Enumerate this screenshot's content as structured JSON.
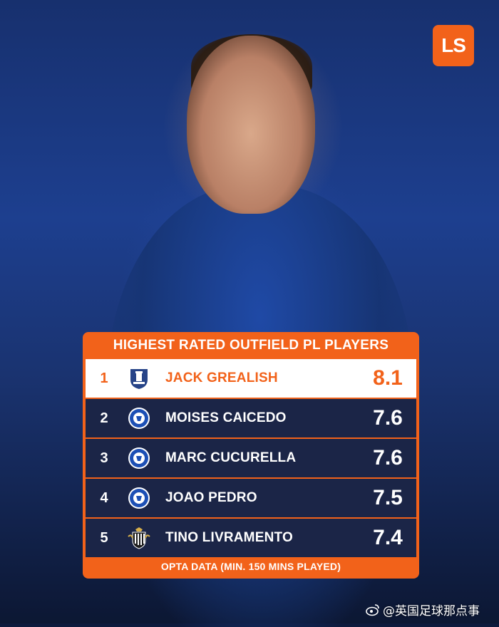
{
  "brand": {
    "logo_text": "LS",
    "accent_color": "#f2621a"
  },
  "table": {
    "title": "HIGHEST RATED OUTFIELD PL PLAYERS",
    "rows": [
      {
        "rank": "1",
        "name": "JACK GREALISH",
        "score": "8.1",
        "club_icon": "everton-crest-icon"
      },
      {
        "rank": "2",
        "name": "MOISES CAICEDO",
        "score": "7.6",
        "club_icon": "chelsea-crest-icon"
      },
      {
        "rank": "3",
        "name": "MARC CUCURELLA",
        "score": "7.6",
        "club_icon": "chelsea-crest-icon"
      },
      {
        "rank": "4",
        "name": "JOAO PEDRO",
        "score": "7.5",
        "club_icon": "chelsea-crest-icon"
      },
      {
        "rank": "5",
        "name": "TINO LIVRAMENTO",
        "score": "7.4",
        "club_icon": "newcastle-crest-icon"
      }
    ],
    "footer": "OPTA DATA (MIN. 150 MINS PLAYED)"
  },
  "watermark": {
    "text": "@英国足球那点事"
  }
}
